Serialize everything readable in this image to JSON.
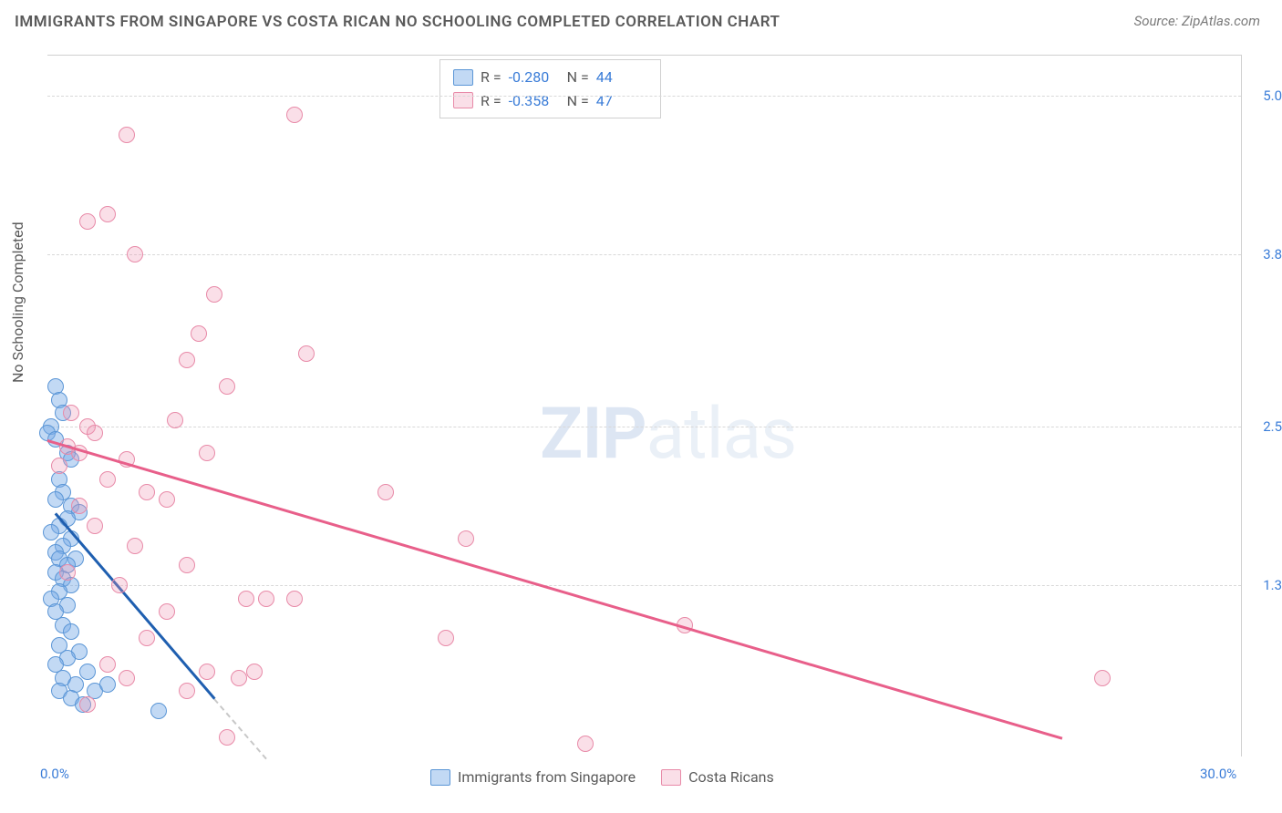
{
  "meta": {
    "title": "IMMIGRANTS FROM SINGAPORE VS COSTA RICAN NO SCHOOLING COMPLETED CORRELATION CHART",
    "source": "Source: ZipAtlas.com",
    "watermark_bold": "ZIP",
    "watermark_rest": "atlas"
  },
  "chart": {
    "type": "scatter",
    "ylabel": "No Schooling Completed",
    "xlim": [
      0,
      30
    ],
    "ylim": [
      0,
      5.3
    ],
    "yticks": [
      {
        "v": 5.0,
        "label": "5.0%"
      },
      {
        "v": 3.8,
        "label": "3.8%"
      },
      {
        "v": 2.5,
        "label": "2.5%"
      },
      {
        "v": 1.3,
        "label": "1.3%"
      }
    ],
    "xticks": [
      {
        "v": 0,
        "label": "0.0%"
      },
      {
        "v": 30,
        "label": "30.0%"
      }
    ],
    "background_color": "#ffffff",
    "grid_color": "#d8d8d8",
    "grid_style": "dashed"
  },
  "series": [
    {
      "name": "Immigrants from Singapore",
      "legend_label": "Immigrants from Singapore",
      "color_fill": "rgba(120,170,230,0.45)",
      "color_stroke": "#5b96d6",
      "trend_color": "#1f5fb0",
      "R": "-0.280",
      "N": "44",
      "marker_radius": 9,
      "trend": {
        "x1": 0.2,
        "y1": 1.85,
        "x2": 4.2,
        "y2": 0.45
      },
      "trend_dash": {
        "x1": 4.2,
        "y1": 0.45,
        "x2": 5.5,
        "y2": 0.0
      },
      "points": [
        [
          0.2,
          2.8
        ],
        [
          0.3,
          2.7
        ],
        [
          0.4,
          2.6
        ],
        [
          0.1,
          2.5
        ],
        [
          0.0,
          2.45
        ],
        [
          0.2,
          2.4
        ],
        [
          0.5,
          2.3
        ],
        [
          0.6,
          2.25
        ],
        [
          0.3,
          2.1
        ],
        [
          0.4,
          2.0
        ],
        [
          0.2,
          1.95
        ],
        [
          0.6,
          1.9
        ],
        [
          0.8,
          1.85
        ],
        [
          0.5,
          1.8
        ],
        [
          0.3,
          1.75
        ],
        [
          0.1,
          1.7
        ],
        [
          0.6,
          1.65
        ],
        [
          0.4,
          1.6
        ],
        [
          0.2,
          1.55
        ],
        [
          0.7,
          1.5
        ],
        [
          0.3,
          1.5
        ],
        [
          0.5,
          1.45
        ],
        [
          0.2,
          1.4
        ],
        [
          0.4,
          1.35
        ],
        [
          0.6,
          1.3
        ],
        [
          0.3,
          1.25
        ],
        [
          0.1,
          1.2
        ],
        [
          0.5,
          1.15
        ],
        [
          0.2,
          1.1
        ],
        [
          0.4,
          1.0
        ],
        [
          0.6,
          0.95
        ],
        [
          0.3,
          0.85
        ],
        [
          0.8,
          0.8
        ],
        [
          0.5,
          0.75
        ],
        [
          0.2,
          0.7
        ],
        [
          1.0,
          0.65
        ],
        [
          0.4,
          0.6
        ],
        [
          0.7,
          0.55
        ],
        [
          0.3,
          0.5
        ],
        [
          1.2,
          0.5
        ],
        [
          0.6,
          0.45
        ],
        [
          2.8,
          0.35
        ],
        [
          0.9,
          0.4
        ],
        [
          1.5,
          0.55
        ]
      ]
    },
    {
      "name": "Costa Ricans",
      "legend_label": "Costa Ricans",
      "color_fill": "rgba(240,150,180,0.3)",
      "color_stroke": "#e88aa8",
      "trend_color": "#e85f8a",
      "R": "-0.358",
      "N": "47",
      "marker_radius": 9,
      "trend": {
        "x1": 0.0,
        "y1": 2.4,
        "x2": 25.5,
        "y2": 0.15
      },
      "points": [
        [
          6.2,
          4.85
        ],
        [
          2.0,
          4.7
        ],
        [
          1.5,
          4.1
        ],
        [
          1.0,
          4.05
        ],
        [
          2.2,
          3.8
        ],
        [
          4.2,
          3.5
        ],
        [
          3.8,
          3.2
        ],
        [
          3.5,
          3.0
        ],
        [
          6.5,
          3.05
        ],
        [
          4.5,
          2.8
        ],
        [
          3.2,
          2.55
        ],
        [
          1.0,
          2.5
        ],
        [
          1.2,
          2.45
        ],
        [
          0.5,
          2.35
        ],
        [
          0.8,
          2.3
        ],
        [
          2.0,
          2.25
        ],
        [
          4.0,
          2.3
        ],
        [
          0.3,
          2.2
        ],
        [
          1.5,
          2.1
        ],
        [
          2.5,
          2.0
        ],
        [
          3.0,
          1.95
        ],
        [
          0.8,
          1.9
        ],
        [
          8.5,
          2.0
        ],
        [
          1.2,
          1.75
        ],
        [
          2.2,
          1.6
        ],
        [
          10.5,
          1.65
        ],
        [
          3.5,
          1.45
        ],
        [
          0.5,
          1.4
        ],
        [
          1.8,
          1.3
        ],
        [
          5.0,
          1.2
        ],
        [
          5.5,
          1.2
        ],
        [
          6.2,
          1.2
        ],
        [
          3.0,
          1.1
        ],
        [
          2.5,
          0.9
        ],
        [
          10.0,
          0.9
        ],
        [
          1.5,
          0.7
        ],
        [
          4.0,
          0.65
        ],
        [
          2.0,
          0.6
        ],
        [
          4.8,
          0.6
        ],
        [
          5.2,
          0.65
        ],
        [
          26.5,
          0.6
        ],
        [
          3.5,
          0.5
        ],
        [
          1.0,
          0.4
        ],
        [
          4.5,
          0.15
        ],
        [
          13.5,
          0.1
        ],
        [
          16.0,
          1.0
        ],
        [
          0.6,
          2.6
        ]
      ]
    }
  ],
  "legend_top": {
    "R_label": "R =",
    "N_label": "N ="
  }
}
